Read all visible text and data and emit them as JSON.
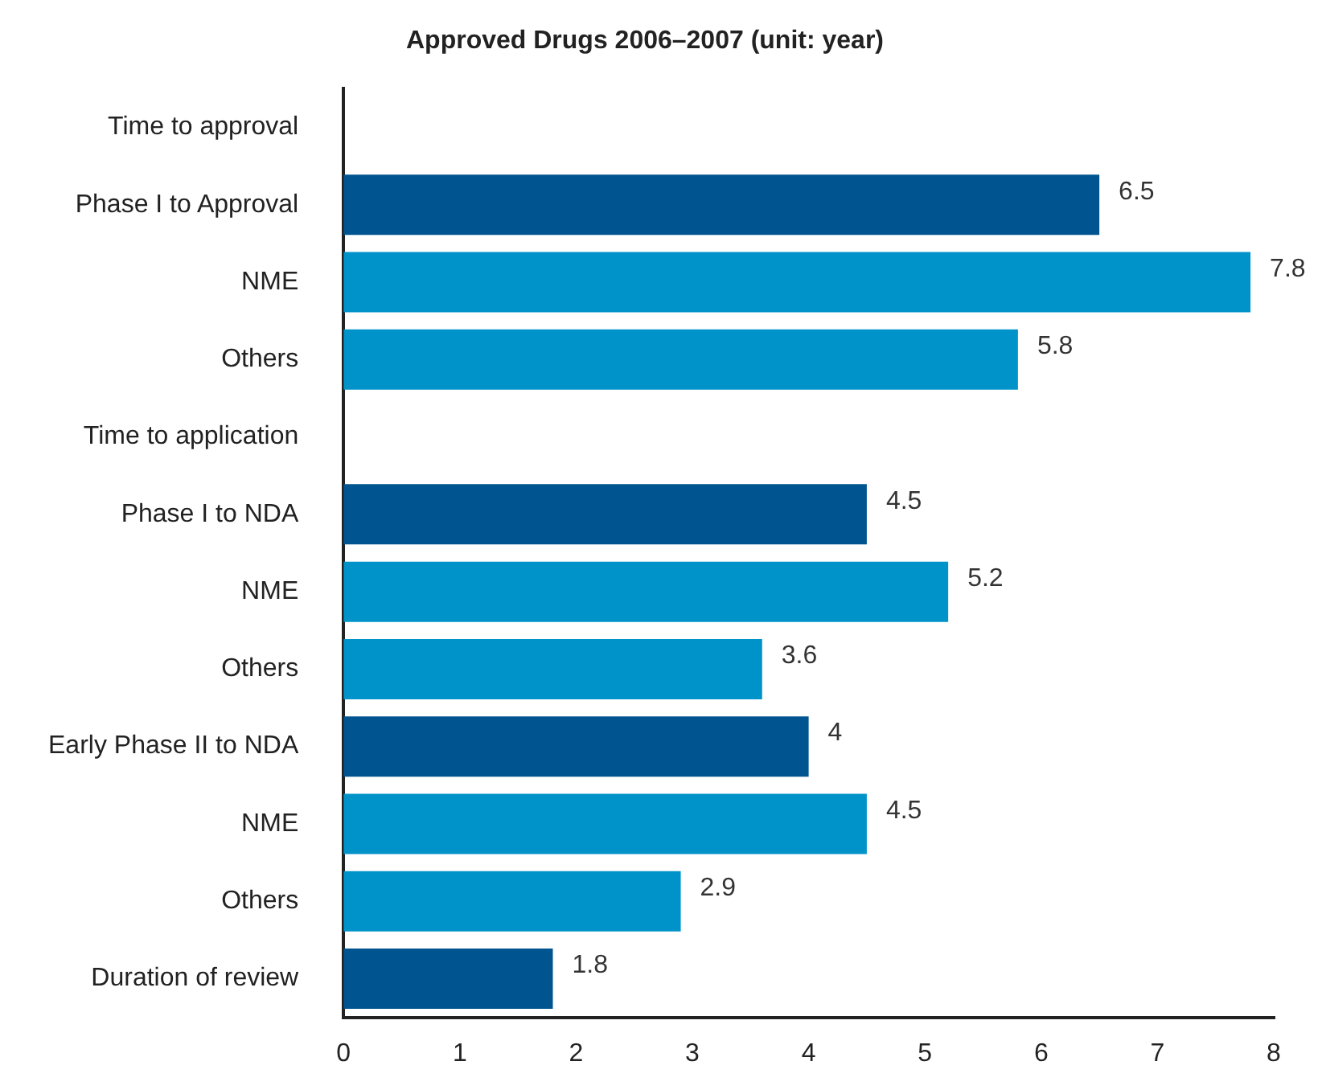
{
  "chart_data": {
    "type": "bar",
    "orientation": "horizontal",
    "title": "Approved Drugs 2006–2007 (unit: year)",
    "categories": [
      "Time to approval",
      "Phase I to Approval",
      "NME",
      "Others",
      "Time to application",
      "Phase I to NDA",
      "NME",
      "Others",
      "Early Phase II to NDA",
      "NME",
      "Others",
      "Duration of review"
    ],
    "values": [
      null,
      6.5,
      7.8,
      5.8,
      null,
      4.5,
      5.2,
      3.6,
      4,
      4.5,
      2.9,
      1.8
    ],
    "colors": [
      "#00548f",
      "#00548f",
      "#0093c9",
      "#0093c9",
      "#00548f",
      "#00548f",
      "#0093c9",
      "#0093c9",
      "#00548f",
      "#0093c9",
      "#0093c9",
      "#00548f"
    ],
    "xlim": [
      0,
      8
    ],
    "xticks": [
      0,
      1,
      2,
      3,
      4,
      5,
      6,
      7,
      8
    ],
    "data_labels": true,
    "legend": false
  }
}
